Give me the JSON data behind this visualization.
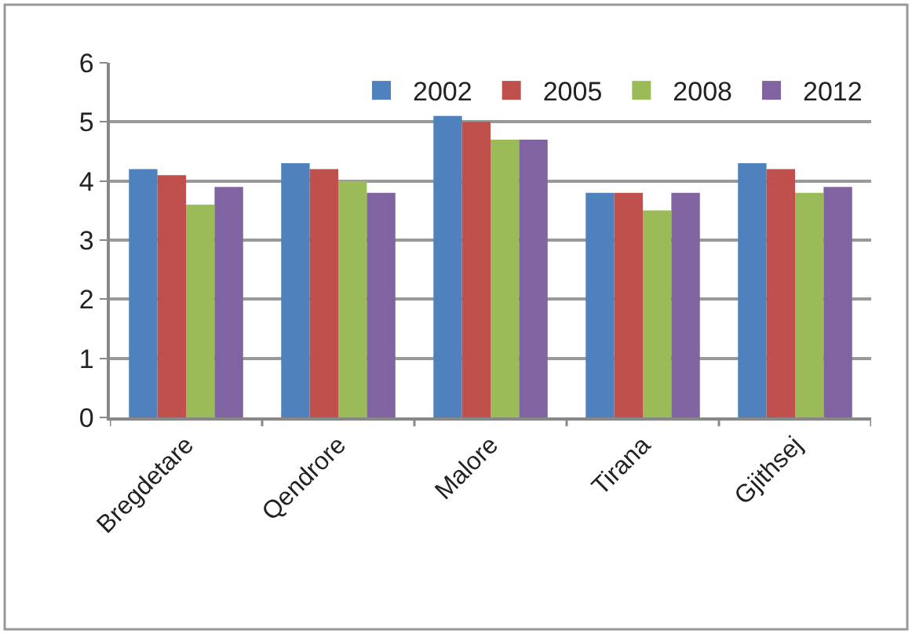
{
  "chart_data": {
    "type": "bar",
    "categories": [
      "Bregdetare",
      "Qendrore",
      "Malore",
      "Tirana",
      "Gjithsej"
    ],
    "series": [
      {
        "name": "2002",
        "color": "#4f81bd",
        "values": [
          4.2,
          4.3,
          5.1,
          3.8,
          4.3
        ]
      },
      {
        "name": "2005",
        "color": "#c0504d",
        "values": [
          4.1,
          4.2,
          5.0,
          3.8,
          4.2
        ]
      },
      {
        "name": "2008",
        "color": "#9bbb59",
        "values": [
          3.6,
          4.0,
          4.7,
          3.5,
          3.8
        ]
      },
      {
        "name": "2012",
        "color": "#8064a2",
        "values": [
          3.9,
          3.8,
          4.7,
          3.8,
          3.9
        ]
      }
    ],
    "ylim": [
      0,
      6
    ],
    "yticks": [
      0,
      1,
      2,
      3,
      4,
      5,
      6
    ],
    "grid": "y",
    "legend": "top right"
  }
}
